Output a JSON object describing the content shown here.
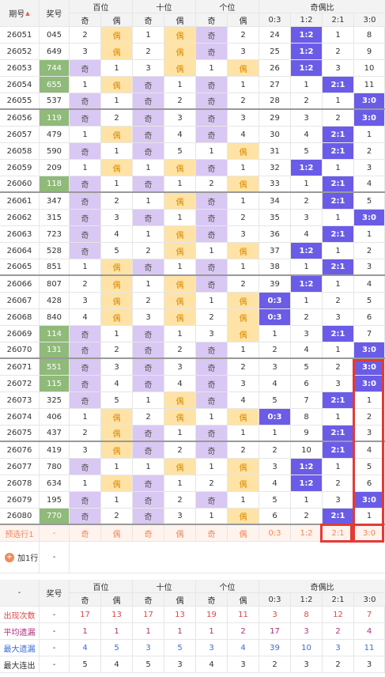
{
  "header": {
    "period": "期号",
    "award": "奖号",
    "groups": [
      "百位",
      "十位",
      "个位",
      "奇偶比"
    ],
    "sub": [
      "奇",
      "偶",
      "奇",
      "偶",
      "奇",
      "偶",
      "0:3",
      "1:2",
      "2:1",
      "3:0"
    ]
  },
  "rows": [
    {
      "p": "26051",
      "n": "045",
      "cells": [
        "2",
        "偶",
        "1",
        "偶",
        "奇",
        "2",
        "24",
        "1:2",
        "1",
        "8"
      ],
      "types": [
        "",
        "e",
        "",
        "e",
        "o",
        "",
        "",
        "b",
        "",
        ""
      ],
      "hl": false
    },
    {
      "p": "26052",
      "n": "649",
      "cells": [
        "3",
        "偶",
        "2",
        "偶",
        "奇",
        "3",
        "25",
        "1:2",
        "2",
        "9"
      ],
      "types": [
        "",
        "e",
        "",
        "e",
        "o",
        "",
        "",
        "b",
        "",
        ""
      ],
      "hl": false
    },
    {
      "p": "26053",
      "n": "744",
      "cells": [
        "奇",
        "1",
        "3",
        "偶",
        "1",
        "偶",
        "26",
        "1:2",
        "3",
        "10"
      ],
      "types": [
        "o",
        "",
        "",
        "e",
        "",
        "e",
        "",
        "b",
        "",
        ""
      ],
      "hl": true
    },
    {
      "p": "26054",
      "n": "655",
      "cells": [
        "1",
        "偶",
        "奇",
        "1",
        "奇",
        "1",
        "27",
        "1",
        "2:1",
        "11"
      ],
      "types": [
        "",
        "e",
        "o",
        "",
        "o",
        "",
        "",
        "",
        "b",
        ""
      ],
      "hl": true
    },
    {
      "p": "26055",
      "n": "537",
      "cells": [
        "奇",
        "1",
        "奇",
        "2",
        "奇",
        "2",
        "28",
        "2",
        "1",
        "3:0"
      ],
      "types": [
        "o",
        "",
        "o",
        "",
        "o",
        "",
        "",
        "",
        "",
        "b"
      ],
      "hl": false,
      "sep": true
    },
    {
      "p": "26056",
      "n": "119",
      "cells": [
        "奇",
        "2",
        "奇",
        "3",
        "奇",
        "3",
        "29",
        "3",
        "2",
        "3:0"
      ],
      "types": [
        "o",
        "",
        "o",
        "",
        "o",
        "",
        "",
        "",
        "",
        "b"
      ],
      "hl": true
    },
    {
      "p": "26057",
      "n": "479",
      "cells": [
        "1",
        "偶",
        "奇",
        "4",
        "奇",
        "4",
        "30",
        "4",
        "2:1",
        "1"
      ],
      "types": [
        "",
        "e",
        "o",
        "",
        "o",
        "",
        "",
        "",
        "b",
        ""
      ],
      "hl": false
    },
    {
      "p": "26058",
      "n": "590",
      "cells": [
        "奇",
        "1",
        "奇",
        "5",
        "1",
        "偶",
        "31",
        "5",
        "2:1",
        "2"
      ],
      "types": [
        "o",
        "",
        "o",
        "",
        "",
        "e",
        "",
        "",
        "b",
        ""
      ],
      "hl": false
    },
    {
      "p": "26059",
      "n": "209",
      "cells": [
        "1",
        "偶",
        "1",
        "偶",
        "奇",
        "1",
        "32",
        "1:2",
        "1",
        "3"
      ],
      "types": [
        "",
        "e",
        "",
        "e",
        "o",
        "",
        "",
        "b",
        "",
        ""
      ],
      "hl": false
    },
    {
      "p": "26060",
      "n": "118",
      "cells": [
        "奇",
        "1",
        "奇",
        "1",
        "2",
        "偶",
        "33",
        "1",
        "2:1",
        "4"
      ],
      "types": [
        "o",
        "",
        "o",
        "",
        "",
        "e",
        "",
        "",
        "b",
        ""
      ],
      "hl": true,
      "sep": true
    },
    {
      "p": "26061",
      "n": "347",
      "cells": [
        "奇",
        "2",
        "1",
        "偶",
        "奇",
        "1",
        "34",
        "2",
        "2:1",
        "5"
      ],
      "types": [
        "o",
        "",
        "",
        "e",
        "o",
        "",
        "",
        "",
        "b",
        ""
      ],
      "hl": false
    },
    {
      "p": "26062",
      "n": "315",
      "cells": [
        "奇",
        "3",
        "奇",
        "1",
        "奇",
        "2",
        "35",
        "3",
        "1",
        "3:0"
      ],
      "types": [
        "o",
        "",
        "o",
        "",
        "o",
        "",
        "",
        "",
        "",
        "b"
      ],
      "hl": false
    },
    {
      "p": "26063",
      "n": "723",
      "cells": [
        "奇",
        "4",
        "1",
        "偶",
        "奇",
        "3",
        "36",
        "4",
        "2:1",
        "1"
      ],
      "types": [
        "o",
        "",
        "",
        "e",
        "o",
        "",
        "",
        "",
        "b",
        ""
      ],
      "hl": false
    },
    {
      "p": "26064",
      "n": "528",
      "cells": [
        "奇",
        "5",
        "2",
        "偶",
        "1",
        "偶",
        "37",
        "1:2",
        "1",
        "2"
      ],
      "types": [
        "o",
        "",
        "",
        "e",
        "",
        "e",
        "",
        "b",
        "",
        ""
      ],
      "hl": false
    },
    {
      "p": "26065",
      "n": "851",
      "cells": [
        "1",
        "偶",
        "奇",
        "1",
        "奇",
        "1",
        "38",
        "1",
        "2:1",
        "3"
      ],
      "types": [
        "",
        "e",
        "o",
        "",
        "o",
        "",
        "",
        "",
        "b",
        ""
      ],
      "hl": false,
      "sep": true
    },
    {
      "p": "26066",
      "n": "807",
      "cells": [
        "2",
        "偶",
        "1",
        "偶",
        "奇",
        "2",
        "39",
        "1:2",
        "1",
        "4"
      ],
      "types": [
        "",
        "e",
        "",
        "e",
        "o",
        "",
        "",
        "b",
        "",
        ""
      ],
      "hl": false
    },
    {
      "p": "26067",
      "n": "428",
      "cells": [
        "3",
        "偶",
        "2",
        "偶",
        "1",
        "偶",
        "0:3",
        "1",
        "2",
        "5"
      ],
      "types": [
        "",
        "e",
        "",
        "e",
        "",
        "e",
        "b",
        "",
        "",
        ""
      ],
      "hl": false
    },
    {
      "p": "26068",
      "n": "840",
      "cells": [
        "4",
        "偶",
        "3",
        "偶",
        "2",
        "偶",
        "0:3",
        "2",
        "3",
        "6"
      ],
      "types": [
        "",
        "e",
        "",
        "e",
        "",
        "e",
        "b",
        "",
        "",
        ""
      ],
      "hl": false
    },
    {
      "p": "26069",
      "n": "114",
      "cells": [
        "奇",
        "1",
        "奇",
        "1",
        "3",
        "偶",
        "1",
        "3",
        "2:1",
        "7"
      ],
      "types": [
        "o",
        "",
        "o",
        "",
        "",
        "e",
        "",
        "",
        "b",
        ""
      ],
      "hl": true
    },
    {
      "p": "26070",
      "n": "131",
      "cells": [
        "奇",
        "2",
        "奇",
        "2",
        "奇",
        "1",
        "2",
        "4",
        "1",
        "3:0"
      ],
      "types": [
        "o",
        "",
        "o",
        "",
        "o",
        "",
        "",
        "",
        "",
        "b"
      ],
      "hl": true,
      "sep": true
    },
    {
      "p": "26071",
      "n": "551",
      "cells": [
        "奇",
        "3",
        "奇",
        "3",
        "奇",
        "2",
        "3",
        "5",
        "2",
        "3:0"
      ],
      "types": [
        "o",
        "",
        "o",
        "",
        "o",
        "",
        "",
        "",
        "",
        "b"
      ],
      "hl": true
    },
    {
      "p": "26072",
      "n": "115",
      "cells": [
        "奇",
        "4",
        "奇",
        "4",
        "奇",
        "3",
        "4",
        "6",
        "3",
        "3:0"
      ],
      "types": [
        "o",
        "",
        "o",
        "",
        "o",
        "",
        "",
        "",
        "",
        "b"
      ],
      "hl": true
    },
    {
      "p": "26073",
      "n": "325",
      "cells": [
        "奇",
        "5",
        "1",
        "偶",
        "奇",
        "4",
        "5",
        "7",
        "2:1",
        "1"
      ],
      "types": [
        "o",
        "",
        "",
        "e",
        "o",
        "",
        "",
        "",
        "b",
        ""
      ],
      "hl": false
    },
    {
      "p": "26074",
      "n": "406",
      "cells": [
        "1",
        "偶",
        "2",
        "偶",
        "1",
        "偶",
        "0:3",
        "8",
        "1",
        "2"
      ],
      "types": [
        "",
        "e",
        "",
        "e",
        "",
        "e",
        "b",
        "",
        "",
        ""
      ],
      "hl": false
    },
    {
      "p": "26075",
      "n": "437",
      "cells": [
        "2",
        "偶",
        "奇",
        "1",
        "奇",
        "1",
        "1",
        "9",
        "2:1",
        "3"
      ],
      "types": [
        "",
        "e",
        "o",
        "",
        "o",
        "",
        "",
        "",
        "b",
        ""
      ],
      "hl": false,
      "sep": true
    },
    {
      "p": "26076",
      "n": "419",
      "cells": [
        "3",
        "偶",
        "奇",
        "2",
        "奇",
        "2",
        "2",
        "10",
        "2:1",
        "4"
      ],
      "types": [
        "",
        "e",
        "o",
        "",
        "o",
        "",
        "",
        "",
        "b",
        ""
      ],
      "hl": false
    },
    {
      "p": "26077",
      "n": "780",
      "cells": [
        "奇",
        "1",
        "1",
        "偶",
        "1",
        "偶",
        "3",
        "1:2",
        "1",
        "5"
      ],
      "types": [
        "o",
        "",
        "",
        "e",
        "",
        "e",
        "",
        "b",
        "",
        ""
      ],
      "hl": false
    },
    {
      "p": "26078",
      "n": "634",
      "cells": [
        "1",
        "偶",
        "奇",
        "1",
        "2",
        "偶",
        "4",
        "1:2",
        "2",
        "6"
      ],
      "types": [
        "",
        "e",
        "o",
        "",
        "",
        "e",
        "",
        "b",
        "",
        ""
      ],
      "hl": false
    },
    {
      "p": "26079",
      "n": "195",
      "cells": [
        "奇",
        "1",
        "奇",
        "2",
        "奇",
        "1",
        "5",
        "1",
        "3",
        "3:0"
      ],
      "types": [
        "o",
        "",
        "o",
        "",
        "o",
        "",
        "",
        "",
        "",
        "b"
      ],
      "hl": false
    },
    {
      "p": "26080",
      "n": "770",
      "cells": [
        "奇",
        "2",
        "奇",
        "3",
        "1",
        "偶",
        "6",
        "2",
        "2:1",
        "1"
      ],
      "types": [
        "o",
        "",
        "o",
        "",
        "",
        "e",
        "",
        "",
        "b",
        ""
      ],
      "hl": true,
      "sep": true
    }
  ],
  "predict": {
    "label": "预选行1",
    "n": "-",
    "cells": [
      "奇",
      "偶",
      "奇",
      "偶",
      "奇",
      "偶",
      "0:3",
      "1:2",
      "2:1",
      "3:0"
    ]
  },
  "add_row": {
    "label": "加1行",
    "dash": "-"
  },
  "stats": [
    {
      "label": "出现次数",
      "n": "-",
      "cells": [
        "17",
        "13",
        "17",
        "13",
        "19",
        "11",
        "3",
        "8",
        "12",
        "7"
      ],
      "cls": "stat-red"
    },
    {
      "label": "平均遗漏",
      "n": "-",
      "cells": [
        "1",
        "1",
        "1",
        "1",
        "1",
        "2",
        "17",
        "3",
        "2",
        "4"
      ],
      "cls": "stat-mag"
    },
    {
      "label": "最大遗漏",
      "n": "-",
      "cells": [
        "4",
        "5",
        "3",
        "5",
        "3",
        "4",
        "39",
        "10",
        "3",
        "11"
      ],
      "cls": "stat-blue"
    },
    {
      "label": "最大连出",
      "n": "-",
      "cells": [
        "5",
        "4",
        "5",
        "3",
        "4",
        "3",
        "2",
        "3",
        "2",
        "3"
      ],
      "cls": "stat-dk"
    }
  ],
  "footer_header": {
    "dash": "-",
    "award": "奖号"
  },
  "colors": {
    "odd": "#d9c8f3",
    "even": "#ffe3a6",
    "blue": "#6b5ce7",
    "green": "#8fba7a",
    "highlight_border": "#e53935"
  }
}
